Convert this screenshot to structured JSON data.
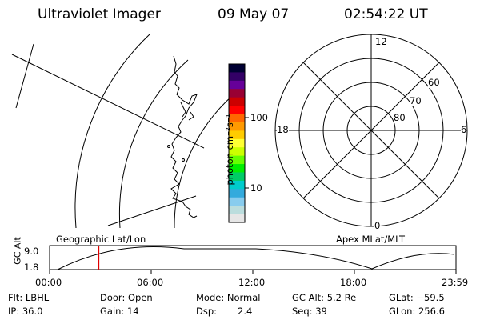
{
  "header": {
    "title": "Ultraviolet Imager",
    "date": "09 May 07",
    "time": "02:54:22 UT"
  },
  "map_panel": {
    "label": "Geographic Lat/Lon"
  },
  "color_bar": {
    "unit_label": "photon cm⁻²s⁻¹",
    "ticks": [
      "100",
      "10"
    ],
    "colors": [
      "#000033",
      "#330066",
      "#660099",
      "#990033",
      "#cc0000",
      "#ff0000",
      "#ff6600",
      "#ff9900",
      "#ffcc00",
      "#ffff33",
      "#ccff00",
      "#66ff00",
      "#00ee00",
      "#00cc66",
      "#00cccc",
      "#33aadd",
      "#88ccee",
      "#bbdddd",
      "#e6e6e6"
    ]
  },
  "polar_plot": {
    "label": "Apex MLat/MLT",
    "mlt_labels": {
      "top": "12",
      "left": "18",
      "right": "6",
      "bottom": "0"
    },
    "lat_labels": [
      "60",
      "70",
      "80"
    ]
  },
  "altitude_plot": {
    "ylabel": "GC Alt",
    "yticks": [
      "9.0",
      "1.8"
    ],
    "xticks": [
      "00:00",
      "06:00",
      "12:00",
      "18:00",
      "23:59"
    ],
    "current_time_marker_hours": 2.9
  },
  "info": {
    "filter": "Flt: LBHL",
    "door": "Door: Open",
    "mode": "Mode: Normal",
    "gc_alt": "GC Alt: 5.2 Re",
    "glat": "GLat: −59.5",
    "ip": "IP: 36.0",
    "gain": "Gain: 14",
    "dsp_label": "Dsp:",
    "dsp_value": "2.4",
    "seq": "Seq: 39",
    "glon": "GLon: 256.6"
  }
}
